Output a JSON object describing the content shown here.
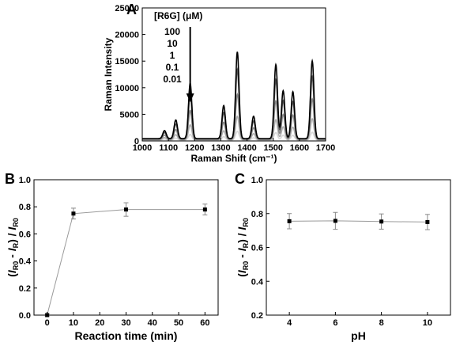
{
  "chart_data": [
    {
      "panel": "A",
      "type": "line",
      "xlabel": "Raman Shift (cm⁻¹)",
      "ylabel": "Raman Intensity",
      "xlim": [
        1000,
        1700
      ],
      "ylim": [
        0,
        25000
      ],
      "xticks": [
        "1000",
        "1100",
        "1200",
        "1300",
        "1400",
        "1500",
        "1600",
        "1700"
      ],
      "yticks": [
        "0",
        "5000",
        "10000",
        "15000",
        "20000",
        "25000"
      ],
      "legend_title": "[R6G] (μM)",
      "series": [
        {
          "name": "100",
          "color": "#000000",
          "peak_scale": 1.0
        },
        {
          "name": "10",
          "color": "#555555",
          "peak_scale": 0.8
        },
        {
          "name": "1",
          "color": "#888888",
          "peak_scale": 0.52
        },
        {
          "name": "0.1",
          "color": "#b0b0b0",
          "peak_scale": 0.27
        },
        {
          "name": "0.01",
          "color": "#d8d8d8",
          "peak_scale": 0.1
        }
      ],
      "peaks_100uM": [
        {
          "x": 1085,
          "y": 1500
        },
        {
          "x": 1128,
          "y": 3500
        },
        {
          "x": 1183,
          "y": 10400
        },
        {
          "x": 1311,
          "y": 6200
        },
        {
          "x": 1363,
          "y": 16300
        },
        {
          "x": 1425,
          "y": 4200
        },
        {
          "x": 1510,
          "y": 13900
        },
        {
          "x": 1538,
          "y": 9000
        },
        {
          "x": 1575,
          "y": 8800
        },
        {
          "x": 1649,
          "y": 14600
        }
      ],
      "arrow_at_x": 1183
    },
    {
      "panel": "B",
      "type": "scatter",
      "xlabel_main": "Reaction time (min)",
      "ylabel": {
        "open": "(",
        "I1": "I",
        "s1": "R0",
        "mid": " - ",
        "I2": "I",
        "s2": "R",
        "slash": ") / ",
        "I3": "I",
        "s3": "R0"
      },
      "xlim": [
        -5,
        65
      ],
      "ylim": [
        0,
        1.0
      ],
      "xticks": [
        "0",
        "10",
        "20",
        "30",
        "40",
        "50",
        "60"
      ],
      "yticks": [
        "0.0",
        "0.2",
        "0.4",
        "0.6",
        "0.8",
        "1.0"
      ],
      "points": [
        {
          "x": 0,
          "y": 0.0,
          "err": 0.01
        },
        {
          "x": 10,
          "y": 0.75,
          "err": 0.04
        },
        {
          "x": 30,
          "y": 0.78,
          "err": 0.05
        },
        {
          "x": 60,
          "y": 0.78,
          "err": 0.04
        }
      ]
    },
    {
      "panel": "C",
      "type": "scatter",
      "xlabel_main": "pH",
      "ylabel": {
        "open": "(",
        "I1": "I",
        "s1": "R0",
        "mid": " - ",
        "I2": "I",
        "s2": "R",
        "slash": ") / ",
        "I3": "I",
        "s3": "R0"
      },
      "xlim": [
        3,
        11
      ],
      "ylim": [
        0.2,
        1.0
      ],
      "xticks": [
        "4",
        "6",
        "8",
        "10"
      ],
      "yticks": [
        "0.2",
        "0.4",
        "0.6",
        "0.8",
        "1.0"
      ],
      "points": [
        {
          "x": 4,
          "y": 0.755,
          "err": 0.045
        },
        {
          "x": 6,
          "y": 0.757,
          "err": 0.05
        },
        {
          "x": 8,
          "y": 0.753,
          "err": 0.045
        },
        {
          "x": 10,
          "y": 0.75,
          "err": 0.045
        }
      ]
    }
  ]
}
